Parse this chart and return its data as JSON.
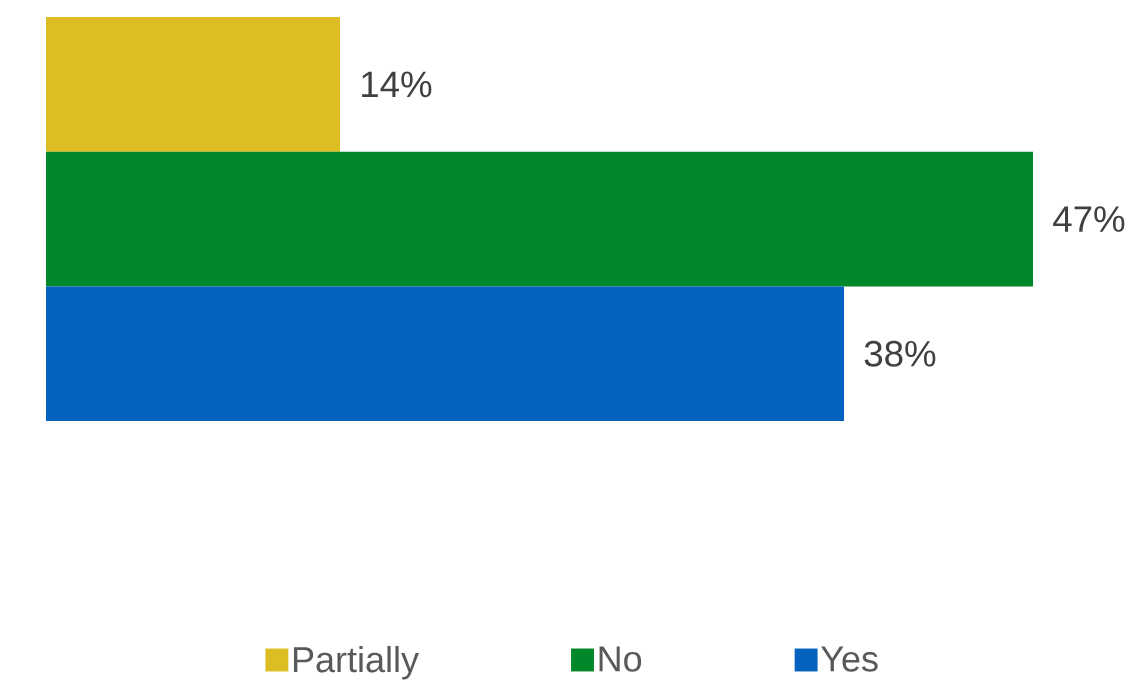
{
  "chart_data": {
    "type": "bar",
    "orientation": "horizontal",
    "categories": [
      null
    ],
    "series": [
      {
        "name": "Partially",
        "color": "#dcbe24",
        "values": [
          14
        ],
        "value_labels": [
          "14%"
        ]
      },
      {
        "name": "No",
        "color": "#00882b",
        "values": [
          47
        ],
        "value_labels": [
          "47%"
        ]
      },
      {
        "name": "Yes",
        "color": "#0563c0",
        "values": [
          38
        ],
        "value_labels": [
          "38%"
        ]
      }
    ],
    "legend": "bottom"
  }
}
